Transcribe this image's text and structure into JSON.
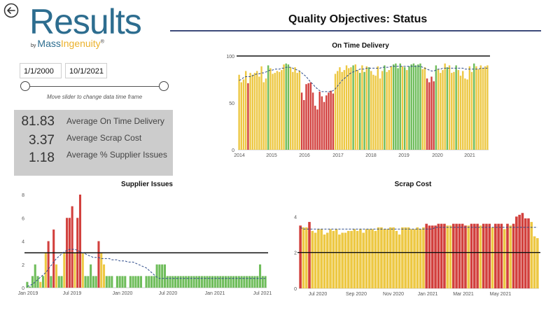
{
  "header": {
    "logo_main": "Results",
    "logo_by": "by",
    "logo_mass": "Mass",
    "logo_ingenuity": "Ingenuity",
    "logo_reg": "®",
    "page_title": "Quality Objectives: Status"
  },
  "filters": {
    "start_date": "1/1/2000",
    "end_date": "10/1/2021",
    "slider_hint": "Move slider to change data time frame"
  },
  "kpis": [
    {
      "value": "81.83",
      "label": "Average On Time Delivery"
    },
    {
      "value": "3.37",
      "label": "Average Scrap Cost"
    },
    {
      "value": "1.18",
      "label": "Average % Supplier Issues"
    }
  ],
  "colors": {
    "red": "#d2403d",
    "yellow": "#edc843",
    "green": "#6fbd5b",
    "trend": "#2c4a8a",
    "target": "#111111",
    "brand": "#2d6d8f"
  },
  "chart_data": [
    {
      "type": "bar",
      "title": "On Time Delivery",
      "ylim": [
        0,
        100
      ],
      "yticks": [
        "0",
        "50",
        "100"
      ],
      "target": 100,
      "x_tick_labels": [
        "2014",
        "2015",
        "2016",
        "2017",
        "2018",
        "2019",
        "2020",
        "2021"
      ],
      "x_range": [
        "2014-01",
        "2021-08"
      ],
      "values": [
        80,
        72,
        75,
        84,
        71,
        82,
        80,
        82,
        84,
        78,
        89,
        72,
        76,
        90,
        87,
        81,
        82,
        84,
        83,
        85,
        91,
        92,
        91,
        88,
        83,
        88,
        82,
        84,
        61,
        53,
        70,
        71,
        72,
        61,
        47,
        43,
        62,
        57,
        51,
        58,
        61,
        63,
        60,
        81,
        84,
        88,
        83,
        85,
        90,
        87,
        88,
        90,
        91,
        85,
        82,
        90,
        83,
        89,
        88,
        84,
        80,
        79,
        89,
        76,
        84,
        90,
        83,
        85,
        89,
        91,
        92,
        87,
        92,
        89,
        88,
        85,
        89,
        91,
        92,
        90,
        91,
        92,
        86,
        88,
        76,
        72,
        78,
        73,
        90,
        86,
        82,
        85,
        92,
        88,
        90,
        82,
        83,
        90,
        85,
        79,
        84,
        76,
        75,
        89,
        83,
        92,
        89,
        86,
        90,
        87,
        89,
        90
      ],
      "colors": [
        "y",
        "y",
        "y",
        "y",
        "r",
        "y",
        "y",
        "y",
        "y",
        "y",
        "y",
        "y",
        "y",
        "g",
        "y",
        "y",
        "y",
        "y",
        "y",
        "y",
        "y",
        "g",
        "g",
        "y",
        "y",
        "y",
        "y",
        "y",
        "r",
        "r",
        "r",
        "r",
        "r",
        "r",
        "r",
        "r",
        "r",
        "r",
        "r",
        "r",
        "r",
        "r",
        "r",
        "y",
        "y",
        "y",
        "y",
        "y",
        "y",
        "y",
        "y",
        "g",
        "y",
        "y",
        "g",
        "y",
        "g",
        "y",
        "g",
        "y",
        "y",
        "y",
        "y",
        "y",
        "y",
        "g",
        "y",
        "y",
        "y",
        "g",
        "g",
        "g",
        "g",
        "y",
        "g",
        "y",
        "g",
        "g",
        "g",
        "g",
        "g",
        "g",
        "y",
        "y",
        "r",
        "r",
        "r",
        "r",
        "g",
        "y",
        "y",
        "y",
        "y",
        "g",
        "y",
        "y",
        "y",
        "g",
        "y",
        "y",
        "y",
        "y",
        "y",
        "y",
        "y",
        "g",
        "y",
        "y",
        "y",
        "y",
        "y",
        "y"
      ],
      "trend": [
        74,
        75,
        77,
        78,
        78,
        78,
        79,
        80,
        81,
        81,
        82,
        82,
        83,
        84,
        85,
        85,
        86,
        86,
        86,
        87,
        87,
        88,
        88,
        88,
        87,
        86,
        85,
        84,
        82,
        80,
        78,
        75,
        72,
        70,
        67,
        65,
        63,
        62,
        62,
        62,
        62,
        62,
        63,
        65,
        68,
        71,
        74,
        76,
        78,
        80,
        82,
        83,
        84,
        85,
        86,
        86,
        86,
        87,
        87,
        87,
        87,
        87,
        87,
        87,
        88,
        88,
        88,
        88,
        89,
        89,
        89,
        89,
        89,
        89,
        89,
        89,
        89,
        89,
        89,
        89,
        89,
        89,
        88,
        87,
        86,
        85,
        84,
        84,
        85,
        86,
        86,
        87,
        87,
        87,
        87,
        87,
        87,
        87,
        87,
        87,
        87,
        86,
        86,
        86,
        86,
        86,
        86,
        86,
        87,
        87,
        87,
        87
      ]
    },
    {
      "type": "bar",
      "title": "Supplier Issues",
      "ylim": [
        0,
        8
      ],
      "yticks": [
        "0",
        "2",
        "4",
        "6",
        "8"
      ],
      "target": 3,
      "x_tick_labels": [
        "Jan 2019",
        "Jul 2019",
        "Jan 2020",
        "Jul 2020",
        "Jan 2021",
        "Jul 2021"
      ],
      "x_range": [
        "2019-01",
        "2021-07"
      ],
      "values": [
        0.5,
        0.1,
        1,
        2,
        1,
        0.5,
        1,
        3,
        4,
        1,
        5,
        2,
        1,
        1,
        3,
        6,
        6,
        7,
        3,
        6,
        8,
        3,
        1,
        1,
        2,
        1,
        1,
        4,
        3,
        2,
        1,
        1,
        1,
        0,
        1,
        1,
        1,
        1,
        0,
        1,
        1,
        1,
        1,
        1,
        0,
        1,
        1,
        1,
        1,
        2,
        2,
        2,
        2,
        1,
        1,
        1,
        1,
        1,
        1,
        1,
        1,
        1,
        1,
        1,
        1,
        1,
        1,
        1,
        1,
        1,
        1,
        1,
        1,
        1,
        1,
        1,
        1,
        1,
        1,
        1,
        1,
        1,
        1,
        1,
        1,
        1,
        1,
        1,
        2,
        1,
        1
      ],
      "colors": [
        "g",
        "g",
        "g",
        "g",
        "g",
        "y",
        "g",
        "y",
        "r",
        "g",
        "r",
        "y",
        "g",
        "g",
        "y",
        "r",
        "r",
        "r",
        "y",
        "r",
        "r",
        "y",
        "g",
        "g",
        "g",
        "g",
        "g",
        "r",
        "y",
        "y",
        "g",
        "g",
        "g",
        "g",
        "g",
        "g",
        "g",
        "g",
        "g",
        "g",
        "g",
        "g",
        "g",
        "g",
        "g",
        "g",
        "g",
        "g",
        "g",
        "g",
        "g",
        "g",
        "g",
        "g",
        "g",
        "g",
        "g",
        "g",
        "g",
        "g",
        "g",
        "g",
        "g",
        "g",
        "g",
        "g",
        "g",
        "g",
        "g",
        "g",
        "g",
        "g",
        "g",
        "g",
        "g",
        "g",
        "g",
        "g",
        "g",
        "g",
        "g",
        "g",
        "g",
        "g",
        "g",
        "g",
        "g",
        "g",
        "g",
        "g",
        "g"
      ],
      "trend": [
        0.1,
        0.2,
        0.3,
        0.5,
        0.7,
        0.9,
        1.1,
        1.3,
        1.6,
        1.9,
        2.2,
        2.5,
        2.7,
        2.9,
        3.1,
        3.2,
        3.3,
        3.3,
        3.3,
        3.2,
        3.1,
        3.0,
        2.9,
        2.8,
        2.7,
        2.6,
        2.6,
        2.6,
        2.5,
        2.5,
        2.5,
        2.5,
        2.4,
        2.4,
        2.4,
        2.3,
        2.3,
        2.3,
        2.2,
        2.2,
        2.2,
        2.1,
        2.0,
        1.9,
        1.8,
        1.7,
        1.5,
        1.3,
        1.1,
        0.9,
        0.8,
        0.8,
        0.8,
        0.8,
        0.8,
        0.8,
        0.8,
        0.8,
        0.8,
        0.8,
        0.8,
        0.8,
        0.8,
        0.8,
        0.8,
        0.8,
        0.8,
        0.8,
        0.8,
        0.8,
        0.8,
        0.8,
        0.8,
        0.8,
        0.8,
        0.8,
        0.8,
        0.8,
        0.8,
        0.8,
        0.8,
        0.8,
        0.8,
        0.8,
        0.8,
        0.8,
        0.8,
        0.8,
        0.8,
        0.8,
        0.8
      ]
    },
    {
      "type": "bar",
      "title": "Scrap Cost",
      "ylim": [
        0,
        4.6
      ],
      "yticks": [
        "0",
        "2",
        "4"
      ],
      "target": 2,
      "x_tick_labels": [
        "Jul 2020",
        "Sep 2020",
        "Nov 2020",
        "Jan 2021",
        "Mar 2021",
        "May 2021"
      ],
      "x_range": [
        "2020-06",
        "2021-07"
      ],
      "values": [
        3.5,
        3.4,
        3.4,
        3.7,
        3.2,
        3.1,
        3.3,
        3.3,
        3.0,
        3.1,
        3.3,
        3.2,
        3.3,
        3.0,
        3.1,
        3.1,
        3.2,
        3.2,
        3.3,
        3.2,
        3.3,
        3.1,
        3.3,
        3.3,
        3.3,
        3.2,
        3.4,
        3.4,
        3.3,
        3.3,
        3.4,
        3.4,
        3.2,
        3.0,
        3.4,
        3.4,
        3.4,
        3.3,
        3.3,
        3.4,
        3.3,
        3.4,
        3.6,
        3.5,
        3.5,
        3.5,
        3.6,
        3.6,
        3.6,
        3.5,
        3.5,
        3.6,
        3.6,
        3.6,
        3.6,
        3.5,
        3.5,
        3.6,
        3.6,
        3.6,
        3.5,
        3.6,
        3.6,
        3.6,
        3.4,
        3.6,
        3.6,
        3.6,
        3.3,
        3.6,
        3.5,
        3.6,
        4.0,
        4.1,
        4.2,
        3.9,
        3.9,
        3.7,
        2.9,
        2.8
      ],
      "colors": [
        "r",
        "y",
        "y",
        "r",
        "y",
        "y",
        "y",
        "y",
        "y",
        "y",
        "y",
        "y",
        "y",
        "y",
        "y",
        "y",
        "y",
        "y",
        "y",
        "y",
        "y",
        "y",
        "y",
        "y",
        "y",
        "y",
        "y",
        "y",
        "y",
        "y",
        "y",
        "y",
        "y",
        "y",
        "y",
        "y",
        "y",
        "y",
        "y",
        "y",
        "y",
        "y",
        "r",
        "r",
        "r",
        "r",
        "r",
        "r",
        "r",
        "y",
        "y",
        "r",
        "r",
        "r",
        "r",
        "r",
        "y",
        "r",
        "r",
        "r",
        "y",
        "r",
        "r",
        "r",
        "y",
        "r",
        "r",
        "r",
        "y",
        "r",
        "y",
        "r",
        "r",
        "r",
        "r",
        "r",
        "r",
        "y",
        "y",
        "y"
      ],
      "trend": [
        3.4,
        3.3,
        3.3,
        3.3,
        3.3,
        3.3,
        3.3,
        3.3,
        3.3,
        3.3,
        3.3,
        3.3,
        3.3,
        3.3,
        3.3,
        3.3,
        3.3,
        3.3,
        3.3,
        3.3,
        3.3,
        3.3,
        3.3,
        3.3,
        3.3,
        3.3,
        3.3,
        3.3,
        3.3,
        3.3,
        3.3,
        3.3,
        3.3,
        3.3,
        3.3,
        3.3,
        3.3,
        3.3,
        3.3,
        3.3,
        3.3,
        3.3,
        3.3,
        3.3,
        3.3,
        3.4,
        3.4,
        3.4,
        3.4,
        3.4,
        3.4,
        3.4,
        3.4,
        3.4,
        3.4,
        3.4,
        3.4,
        3.4,
        3.4,
        3.4,
        3.4,
        3.4,
        3.4,
        3.4,
        3.4,
        3.4,
        3.4,
        3.4,
        3.4,
        3.4,
        3.4,
        3.4,
        3.4,
        3.4,
        3.4,
        3.4,
        3.4,
        3.4,
        3.4,
        3.4
      ]
    }
  ]
}
